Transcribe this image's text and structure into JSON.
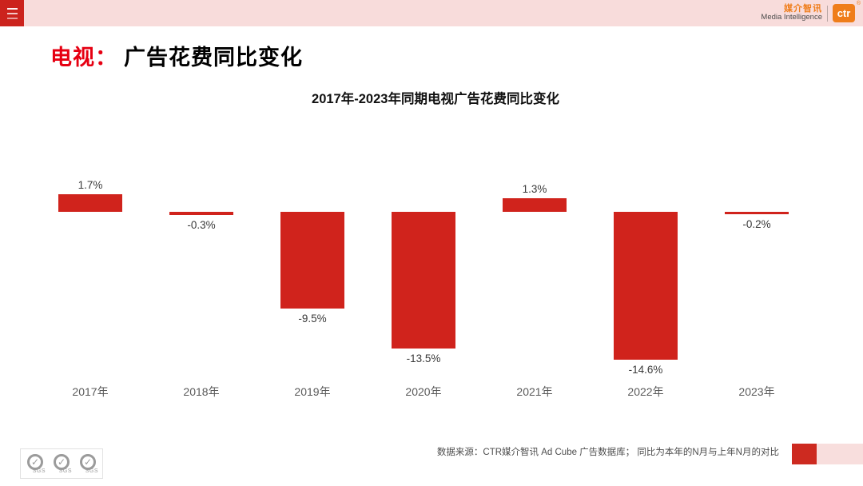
{
  "topbar": {
    "brand_cn": "媒介智讯",
    "brand_en": "Media Intelligence",
    "logo_text": "ctr",
    "registered_mark": "®"
  },
  "page_title": {
    "highlight": "电视：",
    "rest": "广告花费同比变化"
  },
  "chart_data": {
    "type": "bar",
    "title": "2017年-2023年同期电视广告花费同比变化",
    "categories": [
      "2017年",
      "2018年",
      "2019年",
      "2020年",
      "2021年",
      "2022年",
      "2023年"
    ],
    "values": [
      1.7,
      -0.3,
      -9.5,
      -13.5,
      1.3,
      -14.6,
      -0.2
    ],
    "labels": [
      "1.7%",
      "-0.3%",
      "-9.5%",
      "-13.5%",
      "1.3%",
      "-14.6%",
      "-0.2%"
    ],
    "unit": "%",
    "bar_color": "#d0231c",
    "baseline": 0,
    "ylim": [
      -16,
      4
    ],
    "grid": false,
    "legend": false
  },
  "footer": {
    "source": "数据来源：CTR媒介智讯 Ad Cube 广告数据库；  同比为本年的N月与上年N月的对比",
    "sgs_label": "SGS",
    "sgs_check": "✓"
  },
  "colors": {
    "accent_red": "#cc231d",
    "bar_red": "#d0231c",
    "title_red": "#e60012",
    "brand_orange": "#ef7d1a",
    "topbar_pink": "#f8dcdb",
    "footer_pink": "#f8dedd"
  }
}
